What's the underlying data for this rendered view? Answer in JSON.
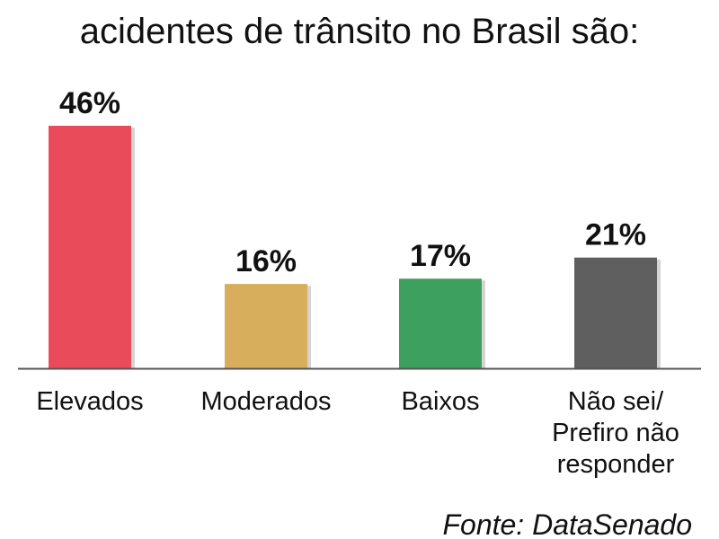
{
  "title": "acidentes de trânsito no Brasil são:",
  "source": "Fonte: DataSenado",
  "chart_data": {
    "type": "bar",
    "title": "acidentes de trânsito no Brasil são:",
    "categories": [
      "Elevados",
      "Moderados",
      "Baixos",
      "Não sei/\nPrefiro não\nresponder"
    ],
    "values": [
      46,
      16,
      17,
      21
    ],
    "value_labels": [
      "46%",
      "16%",
      "17%",
      "21%"
    ],
    "colors": [
      "#e94b5a",
      "#d6ae5c",
      "#3ea05f",
      "#5f5f5f"
    ],
    "ylim": [
      0,
      46
    ],
    "grid": false,
    "legend": "none"
  }
}
